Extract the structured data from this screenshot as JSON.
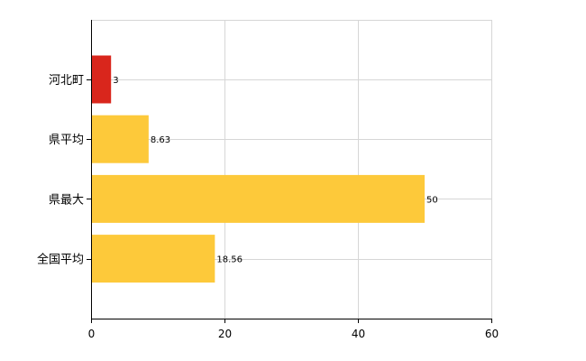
{
  "chart_data": {
    "type": "bar",
    "orientation": "horizontal",
    "categories": [
      "河北町",
      "県平均",
      "県最大",
      "全国平均"
    ],
    "values": [
      3,
      8.63,
      50,
      18.56
    ],
    "data_labels": [
      "3",
      "8.63",
      "50",
      "18.56"
    ],
    "bar_colors": [
      "#d9261c",
      "#fdc93a",
      "#fdc93a",
      "#fdc93a"
    ],
    "xlim": [
      0,
      60
    ],
    "x_ticks": [
      0,
      20,
      40,
      60
    ],
    "grid": true,
    "legend": "none"
  }
}
